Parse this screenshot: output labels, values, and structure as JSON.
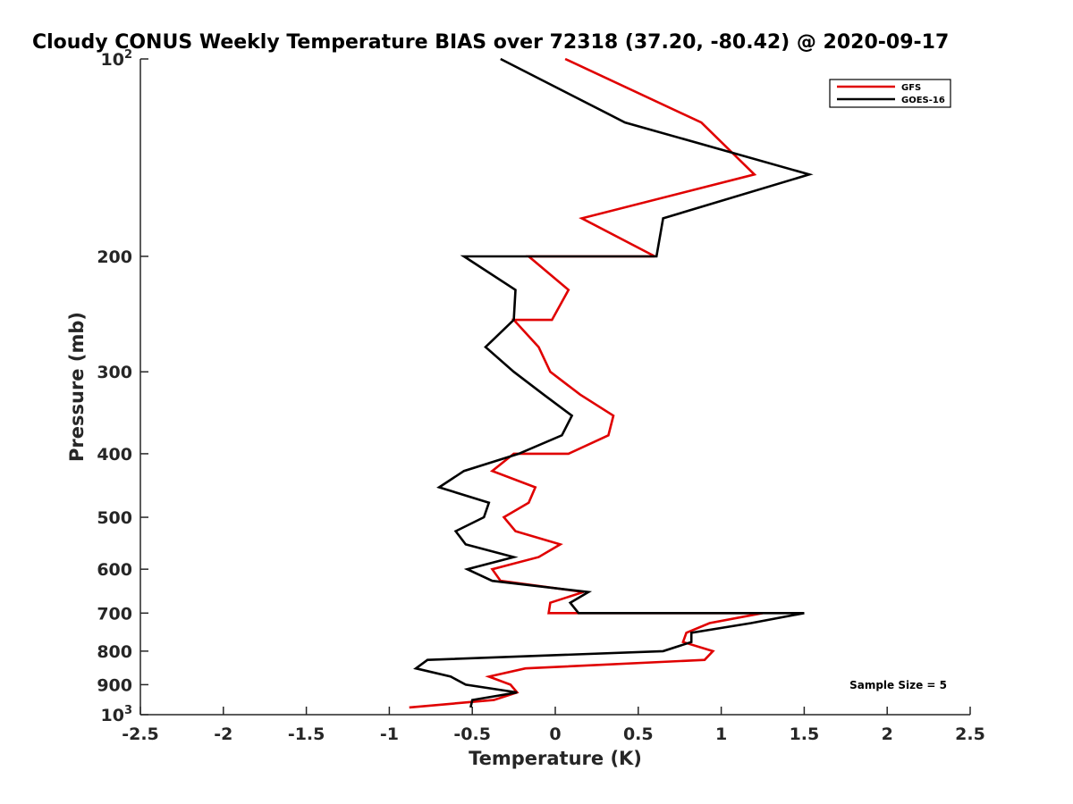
{
  "chart_data": {
    "type": "line",
    "title": "Cloudy CONUS Weekly Temperature BIAS over 72318 (37.20, -80.42) @ 2020-09-17",
    "xlabel": "Temperature (K)",
    "ylabel": "Pressure (mb)",
    "xlim": [
      -2.5,
      2.5
    ],
    "ylim": [
      100,
      1000
    ],
    "y_scale": "log",
    "y_reversed": true,
    "grid": false,
    "legend_position": "top-right",
    "x_ticks": [
      {
        "value": -2.5,
        "label": "-2.5"
      },
      {
        "value": -2,
        "label": "-2"
      },
      {
        "value": -1.5,
        "label": "-1.5"
      },
      {
        "value": -1,
        "label": "-1"
      },
      {
        "value": -0.5,
        "label": "-0.5"
      },
      {
        "value": 0,
        "label": "0"
      },
      {
        "value": 0.5,
        "label": "0.5"
      },
      {
        "value": 1,
        "label": "1"
      },
      {
        "value": 1.5,
        "label": "1.5"
      },
      {
        "value": 2,
        "label": "2"
      },
      {
        "value": 2.5,
        "label": "2.5"
      }
    ],
    "y_ticks": [
      {
        "value": 100,
        "base": "10",
        "exp": "2"
      },
      {
        "value": 200,
        "label": "200"
      },
      {
        "value": 300,
        "label": "300"
      },
      {
        "value": 400,
        "label": "400"
      },
      {
        "value": 500,
        "label": "500"
      },
      {
        "value": 600,
        "label": "600"
      },
      {
        "value": 700,
        "label": "700"
      },
      {
        "value": 800,
        "label": "800"
      },
      {
        "value": 900,
        "label": "900"
      },
      {
        "value": 1000,
        "base": "10",
        "exp": "3"
      }
    ],
    "series": [
      {
        "name": "GFS",
        "color": "#e00000",
        "points": [
          {
            "x": 0.06,
            "y": 100
          },
          {
            "x": 0.88,
            "y": 125
          },
          {
            "x": 1.2,
            "y": 150
          },
          {
            "x": 0.16,
            "y": 175
          },
          {
            "x": 0.6,
            "y": 200
          },
          {
            "x": -0.16,
            "y": 200
          },
          {
            "x": 0.08,
            "y": 225
          },
          {
            "x": -0.02,
            "y": 250
          },
          {
            "x": -0.25,
            "y": 250
          },
          {
            "x": -0.1,
            "y": 275
          },
          {
            "x": -0.03,
            "y": 300
          },
          {
            "x": 0.15,
            "y": 325
          },
          {
            "x": 0.35,
            "y": 350
          },
          {
            "x": 0.32,
            "y": 375
          },
          {
            "x": 0.08,
            "y": 400
          },
          {
            "x": -0.25,
            "y": 400
          },
          {
            "x": -0.38,
            "y": 425
          },
          {
            "x": -0.12,
            "y": 450
          },
          {
            "x": -0.16,
            "y": 475
          },
          {
            "x": -0.31,
            "y": 500
          },
          {
            "x": -0.24,
            "y": 525
          },
          {
            "x": 0.03,
            "y": 550
          },
          {
            "x": -0.1,
            "y": 575
          },
          {
            "x": -0.38,
            "y": 600
          },
          {
            "x": -0.33,
            "y": 625
          },
          {
            "x": 0.17,
            "y": 650
          },
          {
            "x": -0.03,
            "y": 675
          },
          {
            "x": -0.04,
            "y": 700
          },
          {
            "x": 1.25,
            "y": 700
          },
          {
            "x": 0.93,
            "y": 725
          },
          {
            "x": 0.79,
            "y": 750
          },
          {
            "x": 0.77,
            "y": 775
          },
          {
            "x": 0.95,
            "y": 800
          },
          {
            "x": 0.9,
            "y": 825
          },
          {
            "x": -0.18,
            "y": 850
          },
          {
            "x": -0.4,
            "y": 875
          },
          {
            "x": -0.27,
            "y": 900
          },
          {
            "x": -0.23,
            "y": 925
          },
          {
            "x": -0.37,
            "y": 950
          },
          {
            "x": -0.88,
            "y": 975
          }
        ]
      },
      {
        "name": "GOES-16",
        "color": "#000000",
        "points": [
          {
            "x": -0.33,
            "y": 100
          },
          {
            "x": 0.42,
            "y": 125
          },
          {
            "x": 1.53,
            "y": 150
          },
          {
            "x": 0.65,
            "y": 175
          },
          {
            "x": 0.61,
            "y": 200
          },
          {
            "x": -0.55,
            "y": 200
          },
          {
            "x": -0.24,
            "y": 225
          },
          {
            "x": -0.25,
            "y": 250
          },
          {
            "x": -0.42,
            "y": 275
          },
          {
            "x": -0.25,
            "y": 300
          },
          {
            "x": -0.07,
            "y": 325
          },
          {
            "x": 0.1,
            "y": 350
          },
          {
            "x": 0.04,
            "y": 375
          },
          {
            "x": -0.22,
            "y": 400
          },
          {
            "x": -0.55,
            "y": 425
          },
          {
            "x": -0.7,
            "y": 450
          },
          {
            "x": -0.4,
            "y": 475
          },
          {
            "x": -0.43,
            "y": 500
          },
          {
            "x": -0.6,
            "y": 525
          },
          {
            "x": -0.54,
            "y": 550
          },
          {
            "x": -0.25,
            "y": 575
          },
          {
            "x": -0.53,
            "y": 600
          },
          {
            "x": -0.38,
            "y": 625
          },
          {
            "x": 0.2,
            "y": 650
          },
          {
            "x": 0.09,
            "y": 675
          },
          {
            "x": 0.14,
            "y": 700
          },
          {
            "x": 1.5,
            "y": 700
          },
          {
            "x": 1.18,
            "y": 725
          },
          {
            "x": 0.82,
            "y": 750
          },
          {
            "x": 0.82,
            "y": 775
          },
          {
            "x": 0.65,
            "y": 800
          },
          {
            "x": -0.77,
            "y": 825
          },
          {
            "x": -0.84,
            "y": 850
          },
          {
            "x": -0.63,
            "y": 875
          },
          {
            "x": -0.54,
            "y": 900
          },
          {
            "x": -0.23,
            "y": 925
          },
          {
            "x": -0.5,
            "y": 950
          },
          {
            "x": -0.51,
            "y": 975
          }
        ]
      }
    ],
    "annotations": [
      "Sample Size = 5"
    ]
  }
}
